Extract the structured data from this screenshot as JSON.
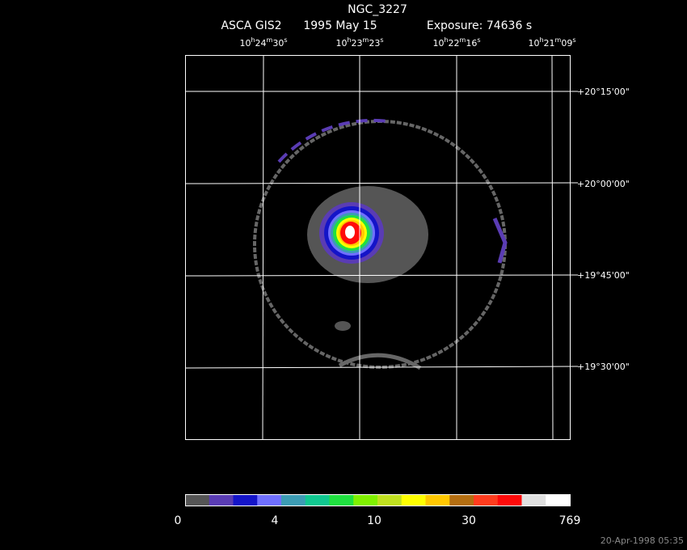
{
  "header": {
    "title": "NGC_3227",
    "instrument": "ASCA GIS2",
    "date": "1995 May 15",
    "exposure": "Exposure: 74636 s"
  },
  "ra_labels": [
    [
      "10",
      "h",
      "24",
      "m",
      "30",
      "s"
    ],
    [
      "10",
      "h",
      "23",
      "m",
      "23",
      "s"
    ],
    [
      "10",
      "h",
      "22",
      "m",
      "16",
      "s"
    ],
    [
      "10",
      "h",
      "21",
      "m",
      "09",
      "s"
    ]
  ],
  "dec_labels": [
    "+20°15'00\"",
    "+20°00'00\"",
    "+19°45'00\"",
    "+19°30'00\""
  ],
  "colorbar": {
    "colors": [
      "#555555",
      "#5a3cb4",
      "#1414c8",
      "#7070ff",
      "#3c9cb4",
      "#10c890",
      "#20e040",
      "#80f000",
      "#c0e020",
      "#ffff00",
      "#ffc800",
      "#b46e10",
      "#ff3c1e",
      "#ff0a0a",
      "#e0e0e0",
      "#ffffff"
    ],
    "labels": [
      "0",
      "4",
      "10",
      "30",
      "769"
    ]
  },
  "footer": {
    "timestamp": "20-Apr-1998 05:35"
  }
}
